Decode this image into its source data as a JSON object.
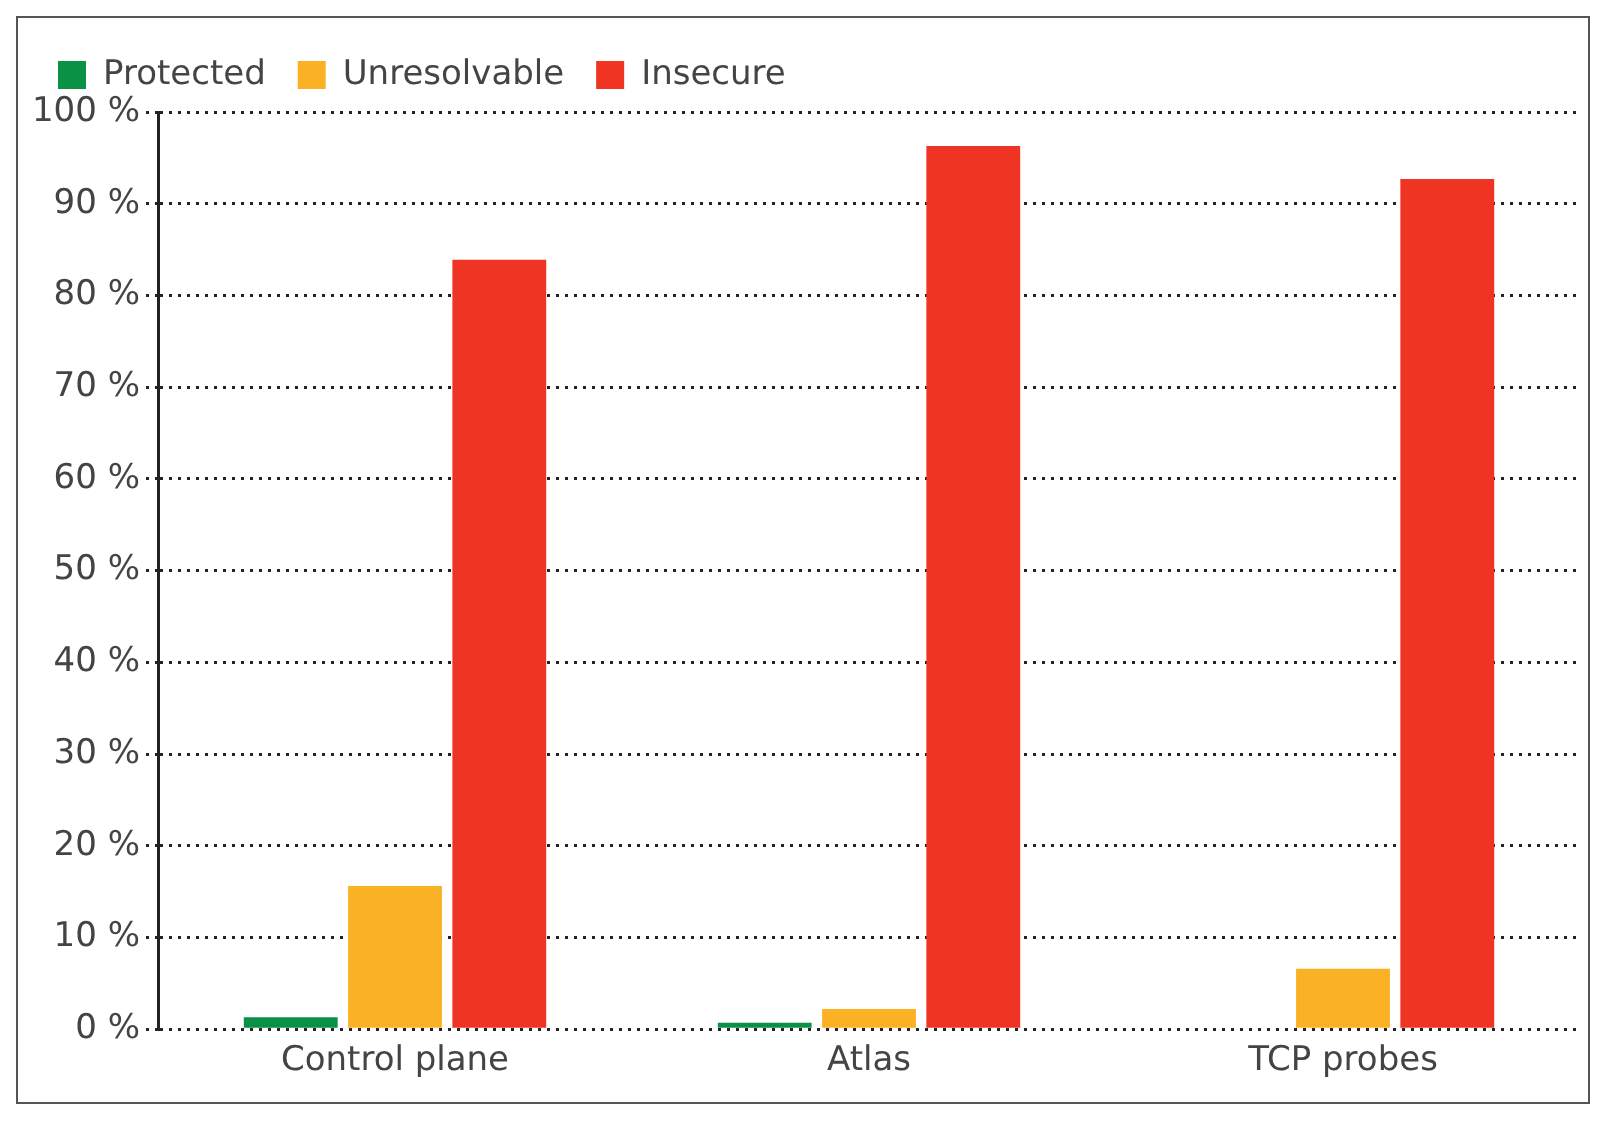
{
  "chart_data": {
    "type": "bar",
    "categories": [
      "Control plane",
      "Atlas",
      "TCP probes"
    ],
    "series": [
      {
        "name": "Protected",
        "color": "#0a9146",
        "values": [
          1.3,
          0.7,
          0
        ]
      },
      {
        "name": "Unresolvable",
        "color": "#fbb124",
        "values": [
          15.6,
          2.2,
          6.6
        ]
      },
      {
        "name": "Insecure",
        "color": "#ef3423",
        "values": [
          83.9,
          96.3,
          92.7
        ]
      }
    ],
    "ylim": [
      0,
      100
    ],
    "yticks": [
      {
        "value": 0,
        "label": "0 %"
      },
      {
        "value": 10,
        "label": "10 %"
      },
      {
        "value": 20,
        "label": "20 %"
      },
      {
        "value": 30,
        "label": "30 %"
      },
      {
        "value": 40,
        "label": "40 %"
      },
      {
        "value": 50,
        "label": "50 %"
      },
      {
        "value": 60,
        "label": "60 %"
      },
      {
        "value": 70,
        "label": "70 %"
      },
      {
        "value": 80,
        "label": "80 %"
      },
      {
        "value": 90,
        "label": "90 %"
      },
      {
        "value": 100,
        "label": "100 %"
      }
    ],
    "grid": "y",
    "legend": "top left"
  }
}
